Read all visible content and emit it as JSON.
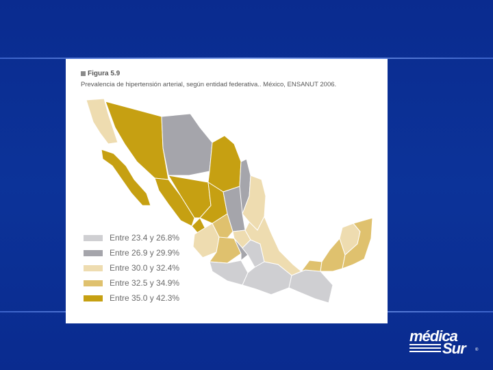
{
  "figure": {
    "title": "Figura 5.9",
    "caption": "Prevalencia de hipertensión arterial, según entidad federativa.. México, ENSANUT 2006."
  },
  "legend": {
    "items": [
      {
        "label": "Entre 23.4 y 26.8%",
        "color": "#cfcfd2"
      },
      {
        "label": "Entre 26.9 y 29.9%",
        "color": "#a5a5ab"
      },
      {
        "label": "Entre 30.0 y 32.4%",
        "color": "#eedcb0"
      },
      {
        "label": "Entre 32.5 y 34.9%",
        "color": "#dfc16e"
      },
      {
        "label": "Entre 35.0 y 42.3%",
        "color": "#c6a012"
      }
    ]
  },
  "logo": {
    "line1": "médica",
    "line2": "Sur",
    "mark": "®"
  }
}
